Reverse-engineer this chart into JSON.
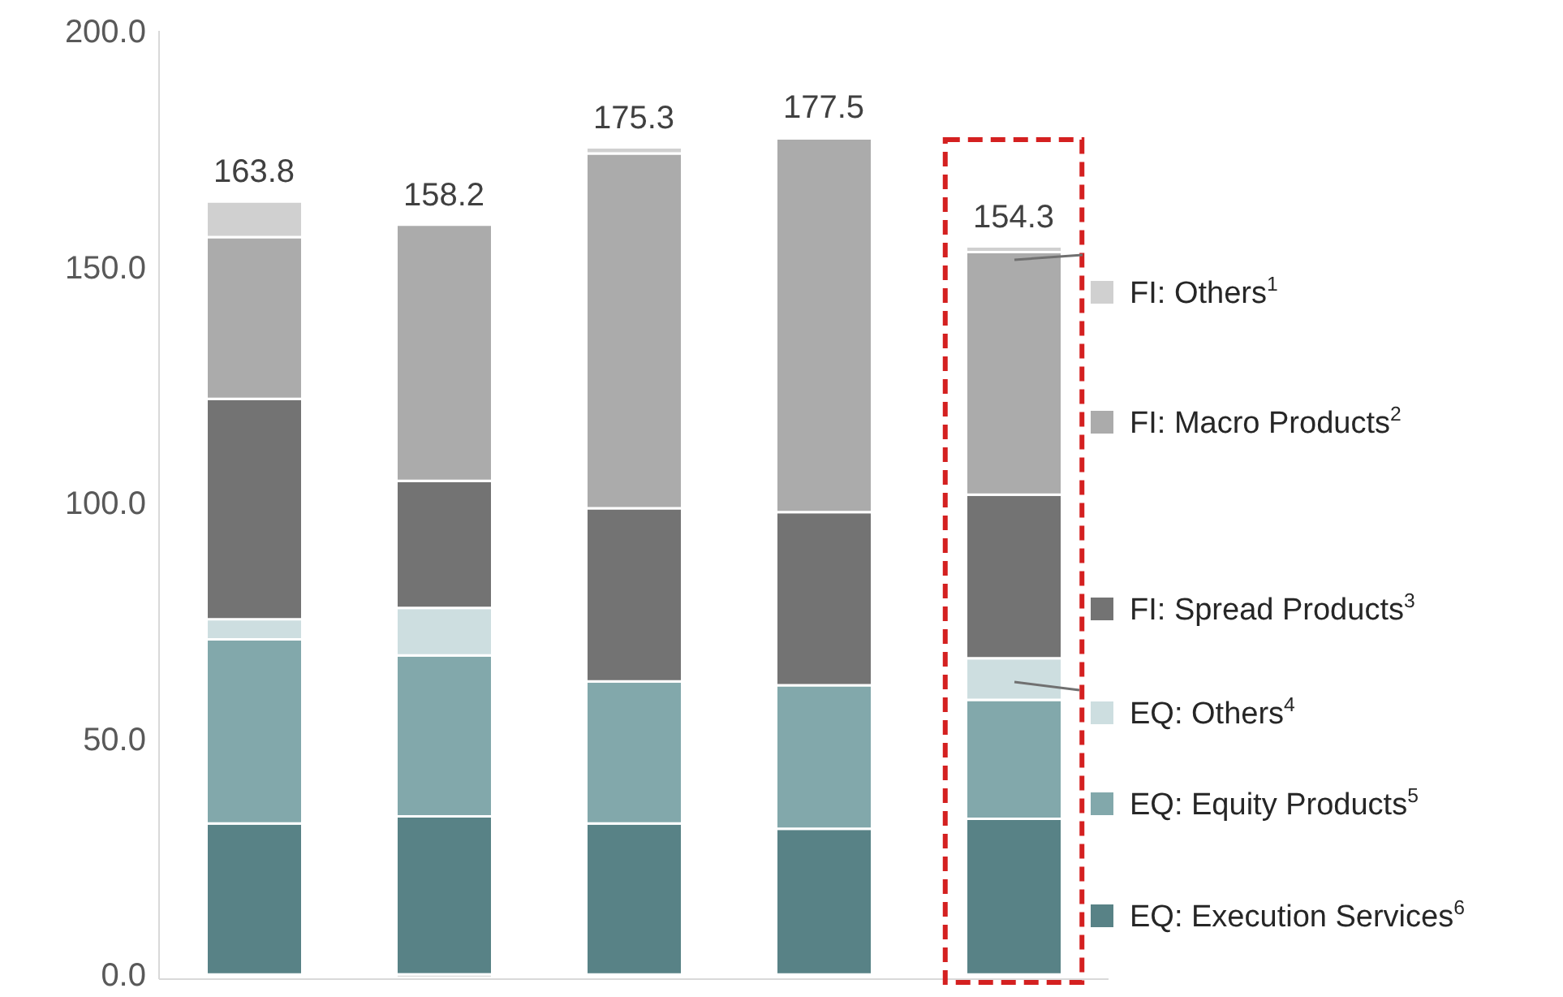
{
  "chart_data": {
    "type": "bar",
    "stacked": true,
    "categories": [
      null,
      null,
      null,
      null,
      null
    ],
    "series": [
      {
        "name": "EQ: Execution Services$^{6}$",
        "color": "#588286",
        "values": [
          32.0,
          33.5,
          32.0,
          30.9,
          33.0
        ]
      },
      {
        "name": "EQ: Equity Products$^{5}$",
        "color": "#82a8ab",
        "values": [
          39.0,
          34.1,
          30.1,
          30.4,
          25.2
        ]
      },
      {
        "name": "EQ: Others$^{4}$",
        "color": "#cddee0",
        "values": [
          4.3,
          10.1,
          null,
          0,
          8.8
        ]
      },
      {
        "name": "FI: Spread Products$^{3}$",
        "color": "#737373",
        "values": [
          46.7,
          26.9,
          36.7,
          36.7,
          34.7
        ]
      },
      {
        "name": "FI: Macro Products$^{2}$",
        "color": "#ababab",
        "values": [
          34.3,
          54.3,
          75.2,
          79.2,
          51.4
        ]
      },
      {
        "name": "FI: Others$^{1}$",
        "color": "#d0d0d0",
        "values": [
          7.5,
          -0.7,
          1.3,
          0.3,
          1.2
        ]
      }
    ],
    "totals": [
      "163.8",
      "158.2",
      "175.3",
      "177.5",
      "154.3"
    ],
    "ylim": [
      -1,
      200
    ],
    "yticks": [
      {
        "value": 0,
        "label": "0.0"
      },
      {
        "value": 50,
        "label": "50.0"
      },
      {
        "value": 100,
        "label": "100.0"
      },
      {
        "value": 150,
        "label": "150.0"
      },
      {
        "value": 200,
        "label": "200.0"
      }
    ],
    "tick_labels": "y",
    "grid": false,
    "legend": "right"
  }
}
